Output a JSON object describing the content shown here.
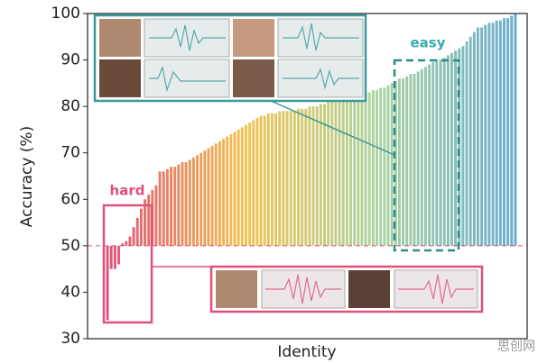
{
  "chart_data": {
    "type": "bar",
    "y_label": "Accuracy (%)",
    "x_label": "Identity",
    "annotations": {
      "hard": "hard",
      "easy": "easy"
    },
    "watermark": "思创网",
    "values": [
      34,
      45,
      45,
      46,
      50.5,
      51,
      52,
      54,
      56,
      58,
      60,
      61,
      62,
      63,
      66,
      66,
      66.5,
      67,
      67,
      67.5,
      68,
      68,
      68.5,
      69,
      69.5,
      70,
      70.5,
      71,
      71.5,
      72,
      72.5,
      73,
      73.5,
      74,
      74.5,
      75,
      75.5,
      76,
      76.5,
      77,
      77.5,
      78,
      78,
      78.5,
      78.5,
      78.5,
      79,
      79,
      79,
      79,
      79,
      79.5,
      79.5,
      79.5,
      80,
      80,
      80,
      80.5,
      80.5,
      81,
      81,
      81,
      81.5,
      81.5,
      82,
      82,
      82,
      82.5,
      82.5,
      83,
      83,
      83.5,
      83.5,
      84,
      84,
      84.5,
      85,
      85.5,
      86,
      86,
      86.5,
      87,
      87,
      87.5,
      88,
      88.5,
      89,
      89.5,
      90,
      90,
      90.5,
      91,
      91.5,
      92,
      92.5,
      93,
      94,
      95,
      96,
      97,
      97,
      97.5,
      98,
      98,
      98.5,
      98.5,
      99,
      99,
      99.5,
      100
    ],
    "colors": [
      "#e0507a",
      "#f2c24c",
      "#a9d3a0",
      "#6aaccc"
    ],
    "reference_line": 50,
    "ylim": [
      30,
      100
    ],
    "yticks": [
      30,
      40,
      50,
      60,
      70,
      80,
      90,
      100
    ]
  }
}
